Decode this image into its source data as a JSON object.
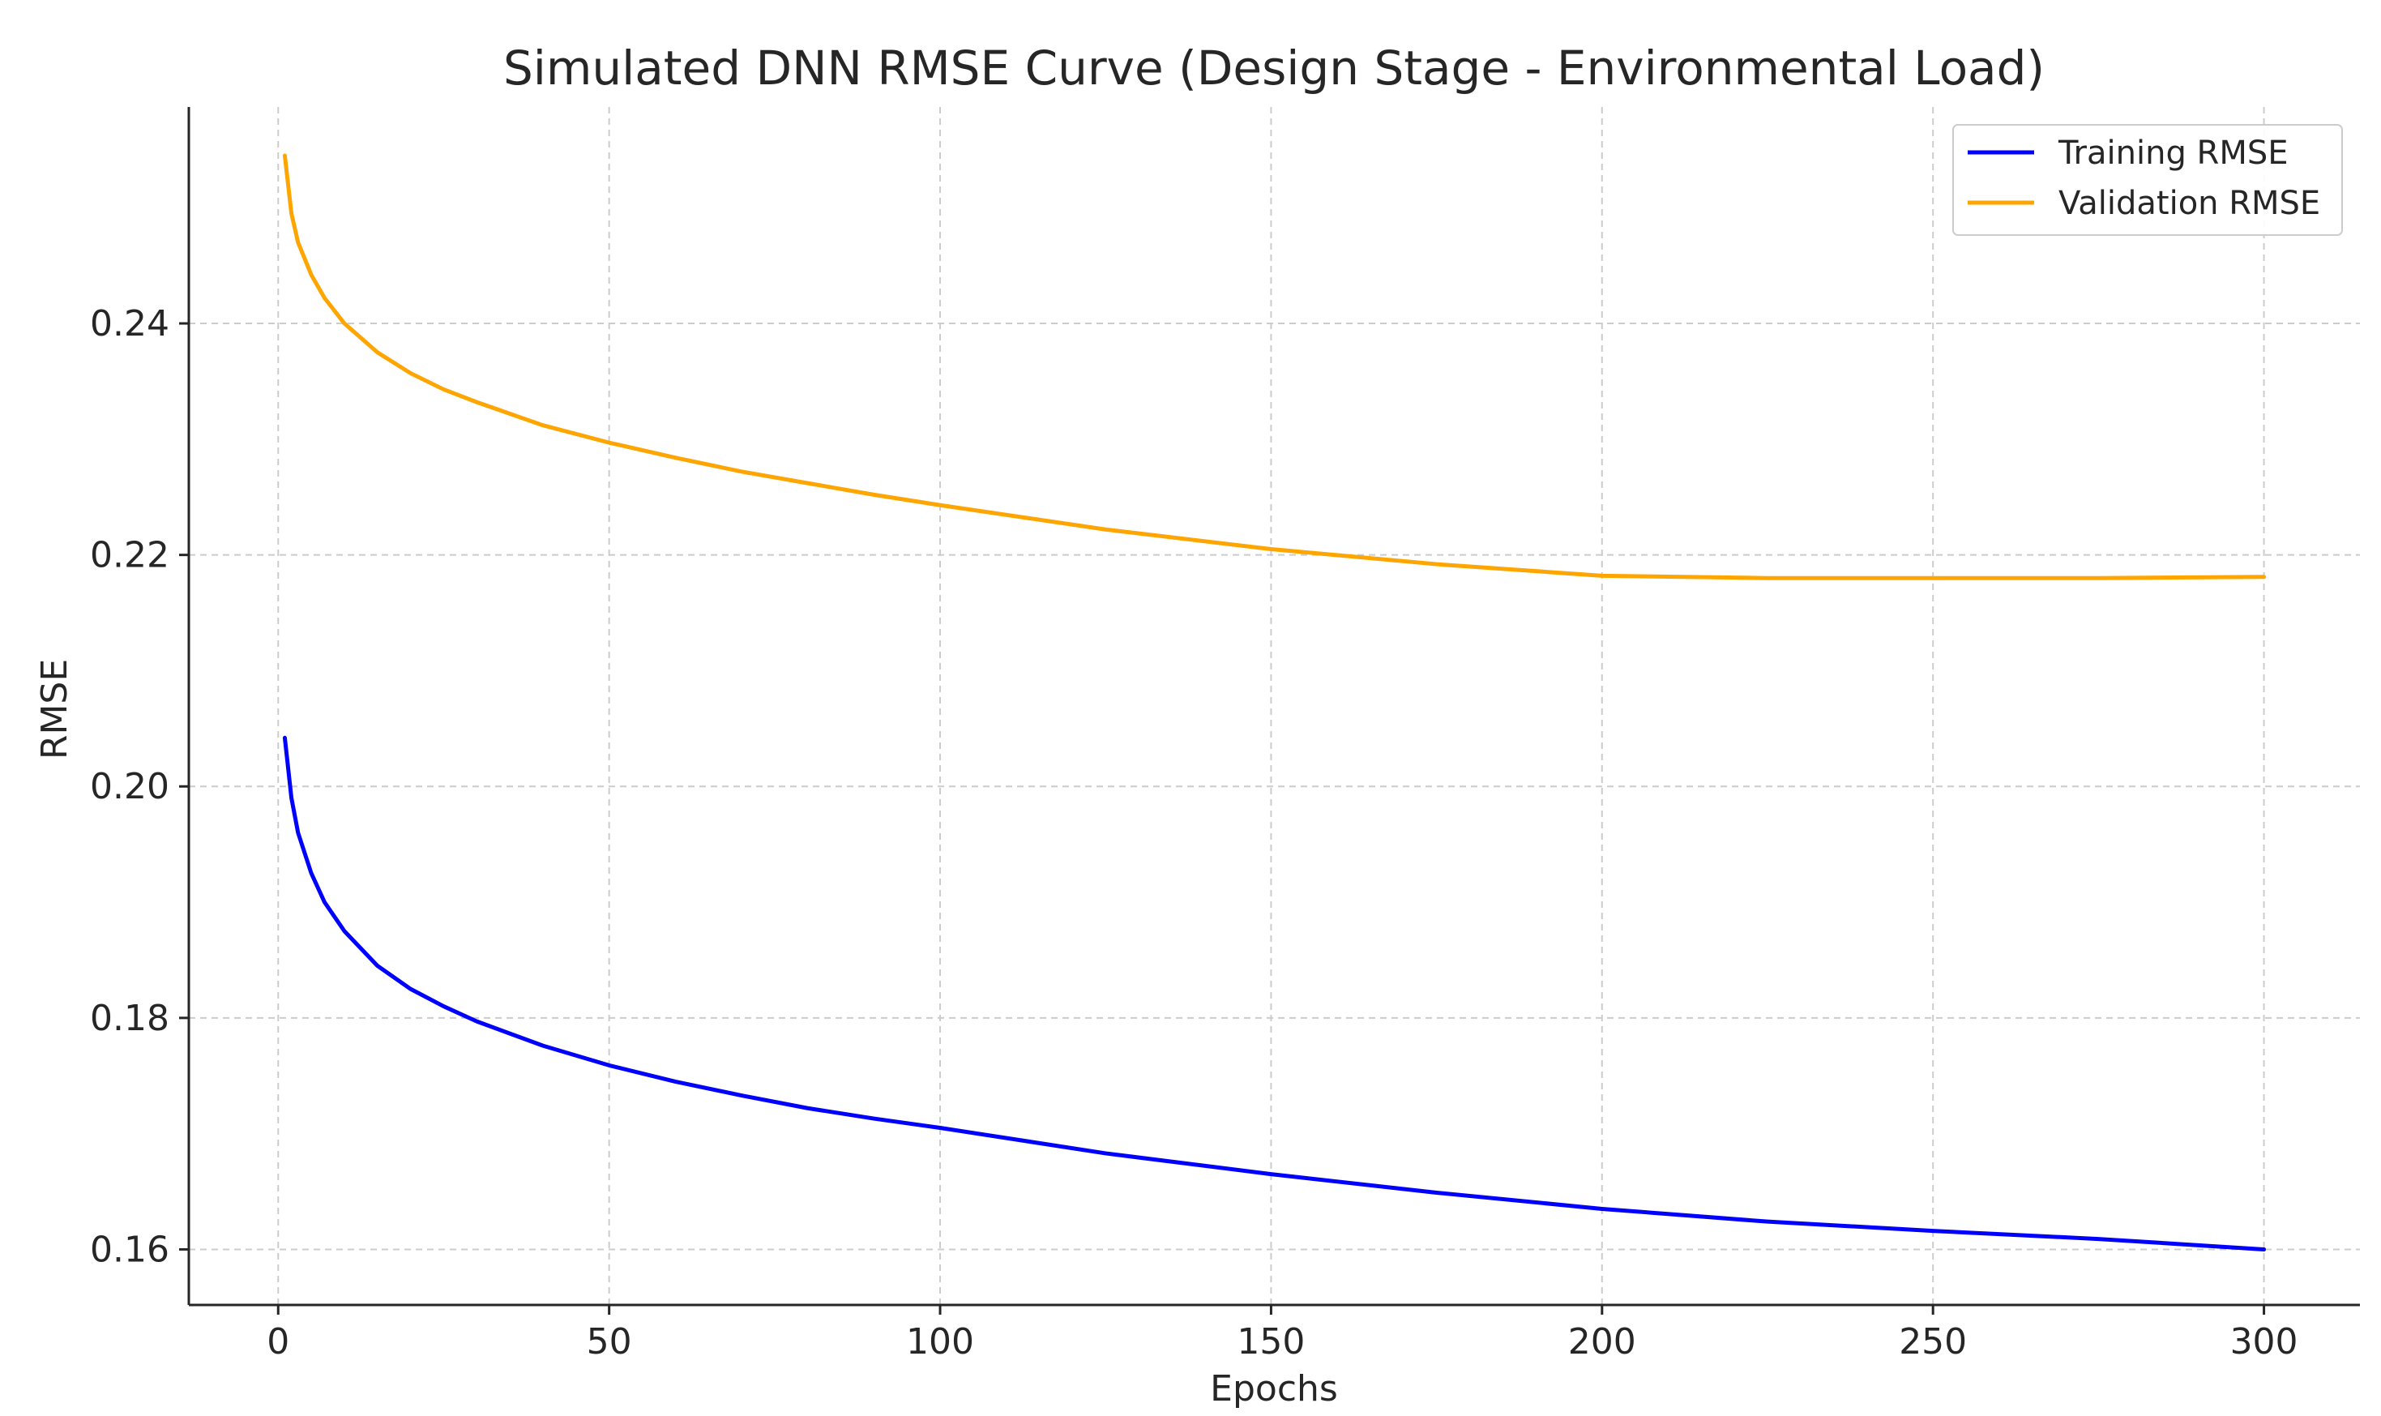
{
  "chart_data": {
    "type": "line",
    "title": "Simulated DNN RMSE Curve (Design Stage - Environmental Load)",
    "xlabel": "Epochs",
    "ylabel": "RMSE",
    "xlim": [
      -13.5,
      314.5
    ],
    "ylim": [
      0.1552,
      0.2587
    ],
    "xticks": [
      0,
      50,
      100,
      150,
      200,
      250,
      300
    ],
    "xtick_labels": [
      "0",
      "50",
      "100",
      "150",
      "200",
      "250",
      "300"
    ],
    "yticks": [
      0.16,
      0.18,
      0.2,
      0.22,
      0.24
    ],
    "ytick_labels": [
      "0.16",
      "0.18",
      "0.20",
      "0.22",
      "0.24"
    ],
    "grid": true,
    "legend_position": "top-right",
    "series": [
      {
        "name": "Training RMSE",
        "color": "#0000ff",
        "x": [
          1,
          2,
          3,
          5,
          7,
          10,
          15,
          20,
          25,
          30,
          40,
          50,
          60,
          70,
          80,
          90,
          100,
          125,
          150,
          175,
          200,
          225,
          250,
          275,
          300
        ],
        "y": [
          0.2042,
          0.199,
          0.196,
          0.1925,
          0.19,
          0.1875,
          0.1845,
          0.1825,
          0.181,
          0.1797,
          0.1776,
          0.1759,
          0.1745,
          0.1733,
          0.1722,
          0.1713,
          0.1705,
          0.1683,
          0.1665,
          0.1649,
          0.1635,
          0.1624,
          0.1616,
          0.1609,
          0.16
        ]
      },
      {
        "name": "Validation RMSE",
        "color": "#ffa500",
        "x": [
          1,
          2,
          3,
          5,
          7,
          10,
          15,
          20,
          25,
          30,
          40,
          50,
          60,
          70,
          80,
          90,
          100,
          125,
          150,
          175,
          200,
          225,
          250,
          275,
          300
        ],
        "y": [
          0.2545,
          0.2495,
          0.247,
          0.2442,
          0.2422,
          0.24,
          0.2375,
          0.2357,
          0.2343,
          0.2332,
          0.2312,
          0.2297,
          0.2284,
          0.2272,
          0.2262,
          0.2252,
          0.2243,
          0.2222,
          0.2205,
          0.2192,
          0.2182,
          0.218,
          0.218,
          0.218,
          0.2181
        ]
      }
    ]
  }
}
